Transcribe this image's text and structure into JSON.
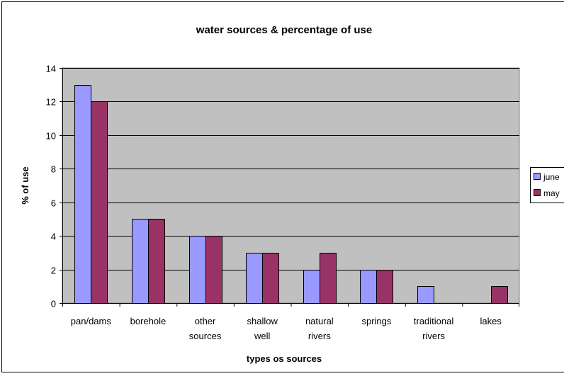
{
  "chart_data": {
    "type": "bar",
    "title": "water sources & percentage of use",
    "xlabel": "types os sources",
    "ylabel": "% of use",
    "categories": [
      [
        "pan/dams"
      ],
      [
        "borehole"
      ],
      [
        "other",
        "sources"
      ],
      [
        "shallow",
        "well"
      ],
      [
        "natural",
        "rivers"
      ],
      [
        "springs"
      ],
      [
        "traditional",
        "rivers"
      ],
      [
        "lakes"
      ]
    ],
    "series": [
      {
        "name": "june",
        "color": "#9999ff",
        "values": [
          13,
          5,
          4,
          3,
          2,
          2,
          1,
          0
        ]
      },
      {
        "name": "may",
        "color": "#993366",
        "values": [
          12,
          5,
          4,
          3,
          3,
          2,
          0,
          1
        ]
      }
    ],
    "ylim": [
      0,
      14
    ],
    "yticks": [
      0,
      2,
      4,
      6,
      8,
      10,
      12,
      14
    ],
    "plot_background": "#c0c0c0",
    "grid": true,
    "legend_position": "right"
  }
}
